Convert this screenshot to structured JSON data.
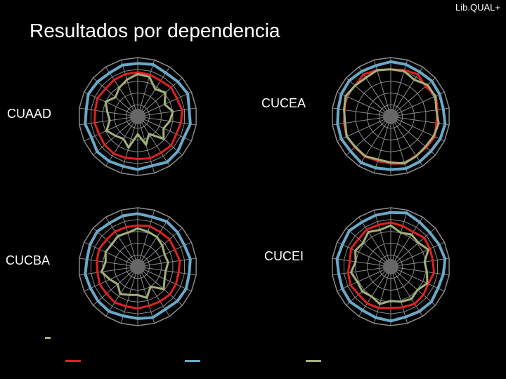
{
  "brand": "Lib.QUAL+",
  "title": "Resultados por dependencia",
  "colors": {
    "minimum": "#e02020",
    "desired": "#6aa8c8",
    "perceived": "#a2b07a",
    "grid": "#8a8a8a",
    "hub": "#666666"
  },
  "legend": {
    "swatches": [
      "#e02020",
      "#6aa8c8",
      "#a2b07a"
    ],
    "small_mark": "#a2b07a"
  },
  "chart_data": [
    {
      "type": "radar",
      "label": "CUAAD",
      "rings": 5,
      "spokes": 22,
      "series": [
        {
          "color": "#6aa8c8",
          "values": [
            0.9,
            0.92,
            0.88,
            0.9,
            0.93,
            0.88,
            0.9,
            0.86,
            0.9,
            0.92,
            0.87,
            0.9,
            0.88,
            0.9,
            0.91,
            0.86,
            0.9,
            0.88,
            0.92,
            0.9,
            0.88,
            0.91
          ]
        },
        {
          "color": "#e02020",
          "values": [
            0.75,
            0.74,
            0.72,
            0.75,
            0.73,
            0.76,
            0.74,
            0.72,
            0.75,
            0.73,
            0.74,
            0.72,
            0.73,
            0.75,
            0.74,
            0.72,
            0.74,
            0.73,
            0.75,
            0.72,
            0.74,
            0.75
          ]
        },
        {
          "color": "#a2b07a",
          "values": [
            0.72,
            0.7,
            0.55,
            0.62,
            0.5,
            0.6,
            0.55,
            0.48,
            0.58,
            0.35,
            0.5,
            0.3,
            0.55,
            0.45,
            0.5,
            0.58,
            0.48,
            0.52,
            0.6,
            0.5,
            0.58,
            0.65
          ]
        }
      ]
    },
    {
      "type": "radar",
      "label": "CUCEA",
      "rings": 5,
      "spokes": 22,
      "series": [
        {
          "color": "#6aa8c8",
          "values": [
            0.93,
            0.92,
            0.9,
            0.92,
            0.91,
            0.9,
            0.93,
            0.92,
            0.9,
            0.91,
            0.92,
            0.9,
            0.91,
            0.93,
            0.9,
            0.92,
            0.91,
            0.9,
            0.92,
            0.93,
            0.91,
            0.9
          ]
        },
        {
          "color": "#e02020",
          "values": [
            0.8,
            0.82,
            0.85,
            0.78,
            0.84,
            0.8,
            0.78,
            0.82,
            0.8,
            0.79,
            0.83,
            0.8,
            0.78,
            0.81,
            0.8,
            0.82,
            0.8,
            0.79,
            0.83,
            0.8,
            0.85,
            0.82
          ]
        },
        {
          "color": "#a2b07a",
          "values": [
            0.8,
            0.8,
            0.74,
            0.82,
            0.83,
            0.78,
            0.82,
            0.8,
            0.78,
            0.8,
            0.83,
            0.78,
            0.76,
            0.8,
            0.79,
            0.82,
            0.78,
            0.8,
            0.84,
            0.8,
            0.78,
            0.82
          ]
        }
      ]
    },
    {
      "type": "radar",
      "label": "CUCBA",
      "rings": 5,
      "spokes": 22,
      "series": [
        {
          "color": "#6aa8c8",
          "values": [
            0.9,
            0.88,
            0.91,
            0.89,
            0.87,
            0.9,
            0.88,
            0.9,
            0.89,
            0.86,
            0.9,
            0.88,
            0.87,
            0.9,
            0.89,
            0.88,
            0.9,
            0.87,
            0.89,
            0.91,
            0.88,
            0.9
          ]
        },
        {
          "color": "#e02020",
          "values": [
            0.7,
            0.72,
            0.7,
            0.71,
            0.69,
            0.72,
            0.7,
            0.71,
            0.72,
            0.7,
            0.69,
            0.71,
            0.7,
            0.72,
            0.7,
            0.71,
            0.69,
            0.7,
            0.72,
            0.7,
            0.71,
            0.7
          ]
        },
        {
          "color": "#a2b07a",
          "values": [
            0.65,
            0.62,
            0.6,
            0.55,
            0.5,
            0.52,
            0.48,
            0.5,
            0.58,
            0.4,
            0.55,
            0.48,
            0.5,
            0.55,
            0.45,
            0.52,
            0.62,
            0.55,
            0.6,
            0.58,
            0.62,
            0.6
          ]
        }
      ]
    },
    {
      "type": "radar",
      "label": "CUCEI",
      "rings": 5,
      "spokes": 22,
      "series": [
        {
          "color": "#6aa8c8",
          "values": [
            0.92,
            0.95,
            0.9,
            0.88,
            0.9,
            0.93,
            0.9,
            0.88,
            0.91,
            0.9,
            0.89,
            0.92,
            0.9,
            0.88,
            0.91,
            0.9,
            0.89,
            0.92,
            0.9,
            0.93,
            0.9,
            0.91
          ]
        },
        {
          "color": "#e02020",
          "values": [
            0.75,
            0.72,
            0.7,
            0.75,
            0.73,
            0.72,
            0.74,
            0.7,
            0.73,
            0.75,
            0.72,
            0.7,
            0.73,
            0.74,
            0.72,
            0.75,
            0.73,
            0.7,
            0.74,
            0.72,
            0.75,
            0.74
          ]
        },
        {
          "color": "#a2b07a",
          "values": [
            0.7,
            0.6,
            0.65,
            0.62,
            0.7,
            0.58,
            0.62,
            0.68,
            0.6,
            0.65,
            0.62,
            0.58,
            0.66,
            0.6,
            0.64,
            0.62,
            0.68,
            0.6,
            0.66,
            0.62,
            0.7,
            0.65
          ]
        }
      ]
    }
  ]
}
